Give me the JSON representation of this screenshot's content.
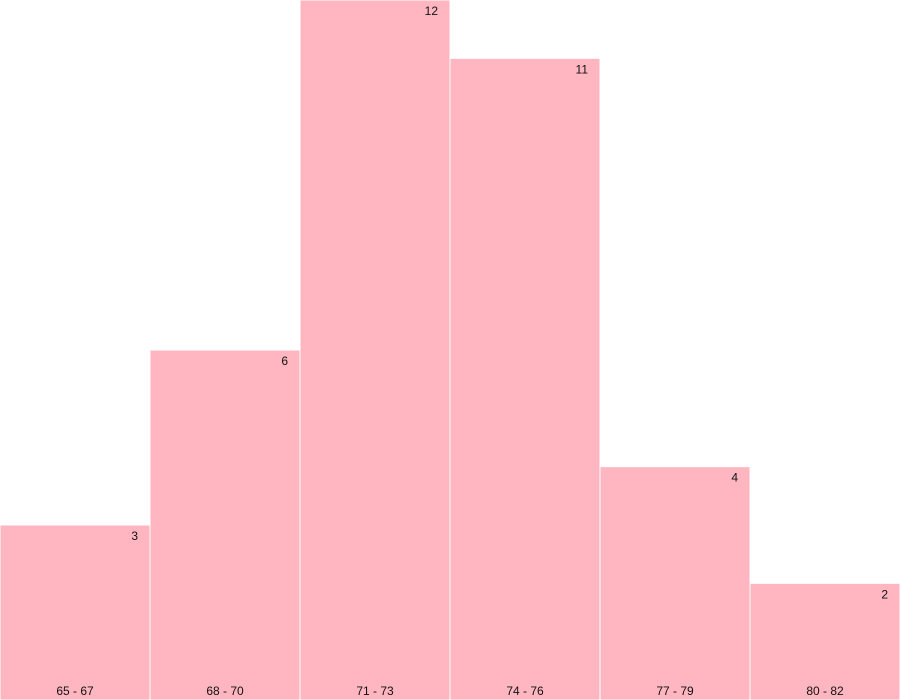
{
  "chart_data": {
    "type": "bar",
    "categories": [
      "65 - 67",
      "68 - 70",
      "71 - 73",
      "74 - 76",
      "77 - 79",
      "80 - 82"
    ],
    "values": [
      3,
      6,
      12,
      11,
      4,
      2
    ],
    "title": "",
    "xlabel": "",
    "ylabel": "",
    "ylim": [
      0,
      12
    ],
    "grid": false,
    "legend": "none",
    "bar_color": "#ffb6c1",
    "bar_edge_color": "#ffffff",
    "text_color": "#111111",
    "background_color": "#ffffff"
  }
}
